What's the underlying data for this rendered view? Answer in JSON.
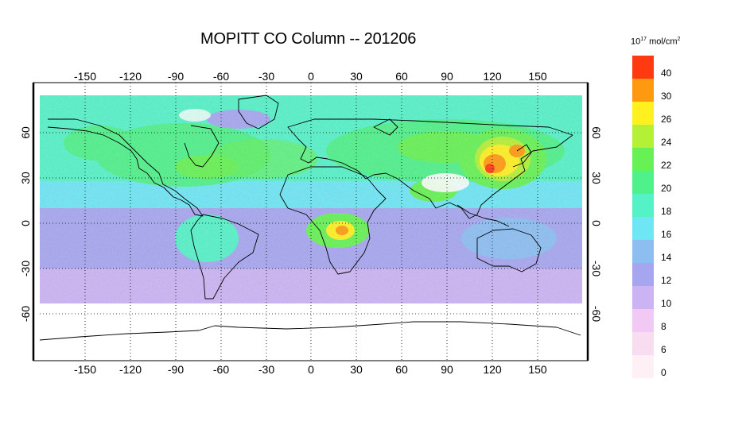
{
  "title": "MOPITT CO Column -- 201206",
  "units": {
    "prefix": "10",
    "exp1": "17",
    "middle": " mol/cm",
    "exp2": "2"
  },
  "lon_ticks": [
    "-150",
    "-120",
    "-90",
    "-60",
    "-30",
    "0",
    "30",
    "60",
    "90",
    "120",
    "150"
  ],
  "lat_ticks_left": [
    "60",
    "30",
    "0",
    "-30",
    "-60"
  ],
  "lat_ticks_right": [
    "60",
    "30",
    "0",
    "-30",
    "-60"
  ],
  "legend": [
    {
      "label": "40",
      "color": "#ff3a10"
    },
    {
      "label": "30",
      "color": "#ff9a10"
    },
    {
      "label": "26",
      "color": "#fff020"
    },
    {
      "label": "24",
      "color": "#b4f036"
    },
    {
      "label": "22",
      "color": "#66f254"
    },
    {
      "label": "20",
      "color": "#4ff18a"
    },
    {
      "label": "18",
      "color": "#55f2c8"
    },
    {
      "label": "16",
      "color": "#6ee6f4"
    },
    {
      "label": "14",
      "color": "#8cbef2"
    },
    {
      "label": "12",
      "color": "#a6a6f0"
    },
    {
      "label": "10",
      "color": "#ccb4f4"
    },
    {
      "label": "8",
      "color": "#f2c8f4"
    },
    {
      "label": "6",
      "color": "#f8dcf0"
    },
    {
      "label": "0",
      "color": "#fff0f6"
    }
  ],
  "chart_data": {
    "type": "heatmap",
    "title": "MOPITT CO Column -- 201206",
    "x_axis": {
      "range": [
        -180,
        180
      ],
      "ticks": [
        -150,
        -120,
        -90,
        -60,
        -30,
        0,
        30,
        60,
        90,
        120,
        150
      ]
    },
    "y_axis": {
      "range": [
        -90,
        90
      ],
      "ticks": [
        60,
        30,
        0,
        -30,
        -60
      ]
    },
    "color_scale_breaks": [
      0,
      6,
      8,
      10,
      12,
      14,
      16,
      18,
      20,
      22,
      24,
      26,
      30,
      40
    ],
    "data_coverage_lat": [
      -55,
      82
    ],
    "grid": true
  }
}
